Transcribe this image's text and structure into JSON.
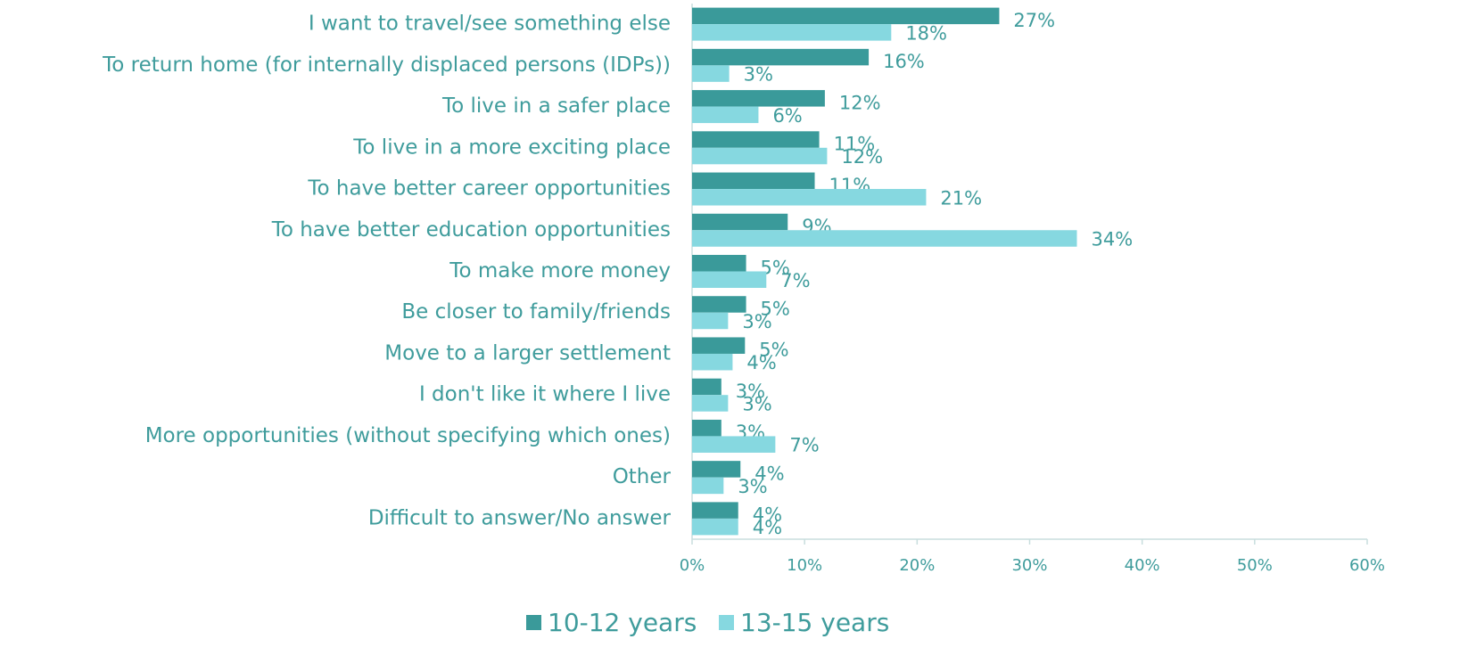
{
  "chart_data": {
    "type": "bar",
    "orientation": "horizontal",
    "categories": [
      "I want to travel/see something else",
      "To return home (for internally displaced persons (IDPs))",
      "To live in a safer place",
      "To live in a more exciting place",
      "To have better career opportunities",
      "To have better education opportunities",
      "To make more money",
      "Be closer to family/friends",
      "Move to a larger settlement",
      "I don't like it where I live",
      "More opportunities (without specifying which ones)",
      "Other",
      "Difficult to answer/No answer"
    ],
    "series": [
      {
        "name": "10-12 years",
        "color": "#3a9a9a",
        "values": [
          27.3,
          15.7,
          11.8,
          11.3,
          10.9,
          8.5,
          4.8,
          4.8,
          4.7,
          2.6,
          2.6,
          4.3,
          4.1
        ],
        "value_labels": [
          "27%",
          "16%",
          "12%",
          "11%",
          "11%",
          "9%",
          "5%",
          "5%",
          "5%",
          "3%",
          "3%",
          "4%",
          "4%"
        ]
      },
      {
        "name": "13-15 years",
        "color": "#86d8e0",
        "values": [
          17.7,
          3.3,
          5.9,
          12.0,
          20.8,
          34.2,
          6.6,
          3.2,
          3.6,
          3.2,
          7.4,
          2.8,
          4.1
        ],
        "value_labels": [
          "18%",
          "3%",
          "6%",
          "12%",
          "21%",
          "34%",
          "7%",
          "3%",
          "4%",
          "3%",
          "7%",
          "3%",
          "4%"
        ]
      }
    ],
    "xlim": [
      0,
      60
    ],
    "xticks": [
      {
        "value": 0,
        "label": "0%"
      },
      {
        "value": 10,
        "label": "10%"
      },
      {
        "value": 20,
        "label": "20%"
      },
      {
        "value": 30,
        "label": "30%"
      },
      {
        "value": 40,
        "label": "40%"
      },
      {
        "value": 50,
        "label": "50%"
      },
      {
        "value": 60,
        "label": "60%"
      }
    ],
    "legend": "bottom"
  }
}
